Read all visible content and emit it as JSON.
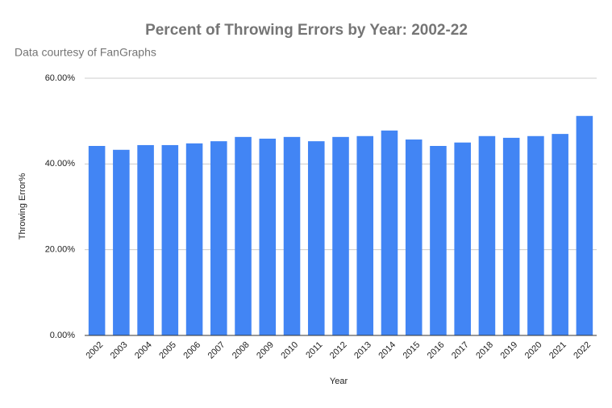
{
  "chart_data": {
    "type": "bar",
    "title": "Percent of Throwing Errors by Year: 2002-22",
    "subtitle": "Data courtesy of FanGraphs",
    "x_label": "Year",
    "y_label": "Throwing Error%",
    "categories": [
      "2002",
      "2003",
      "2004",
      "2005",
      "2006",
      "2007",
      "2008",
      "2009",
      "2010",
      "2011",
      "2012",
      "2013",
      "2014",
      "2015",
      "2016",
      "2017",
      "2018",
      "2019",
      "2020",
      "2021",
      "2022"
    ],
    "values": [
      44.2,
      43.3,
      44.4,
      44.4,
      44.8,
      45.3,
      46.3,
      45.9,
      46.3,
      45.3,
      46.3,
      46.5,
      47.8,
      45.7,
      44.2,
      45.0,
      46.5,
      46.1,
      46.5,
      47.0,
      51.2
    ],
    "color": "#4285f4",
    "ylim": [
      0,
      60
    ],
    "yticks": [
      {
        "value": 0,
        "label": "0.00%"
      },
      {
        "value": 20,
        "label": "20.00%"
      },
      {
        "value": 40,
        "label": "40.00%"
      },
      {
        "value": 60,
        "label": "60.00%"
      }
    ],
    "grid": true
  }
}
